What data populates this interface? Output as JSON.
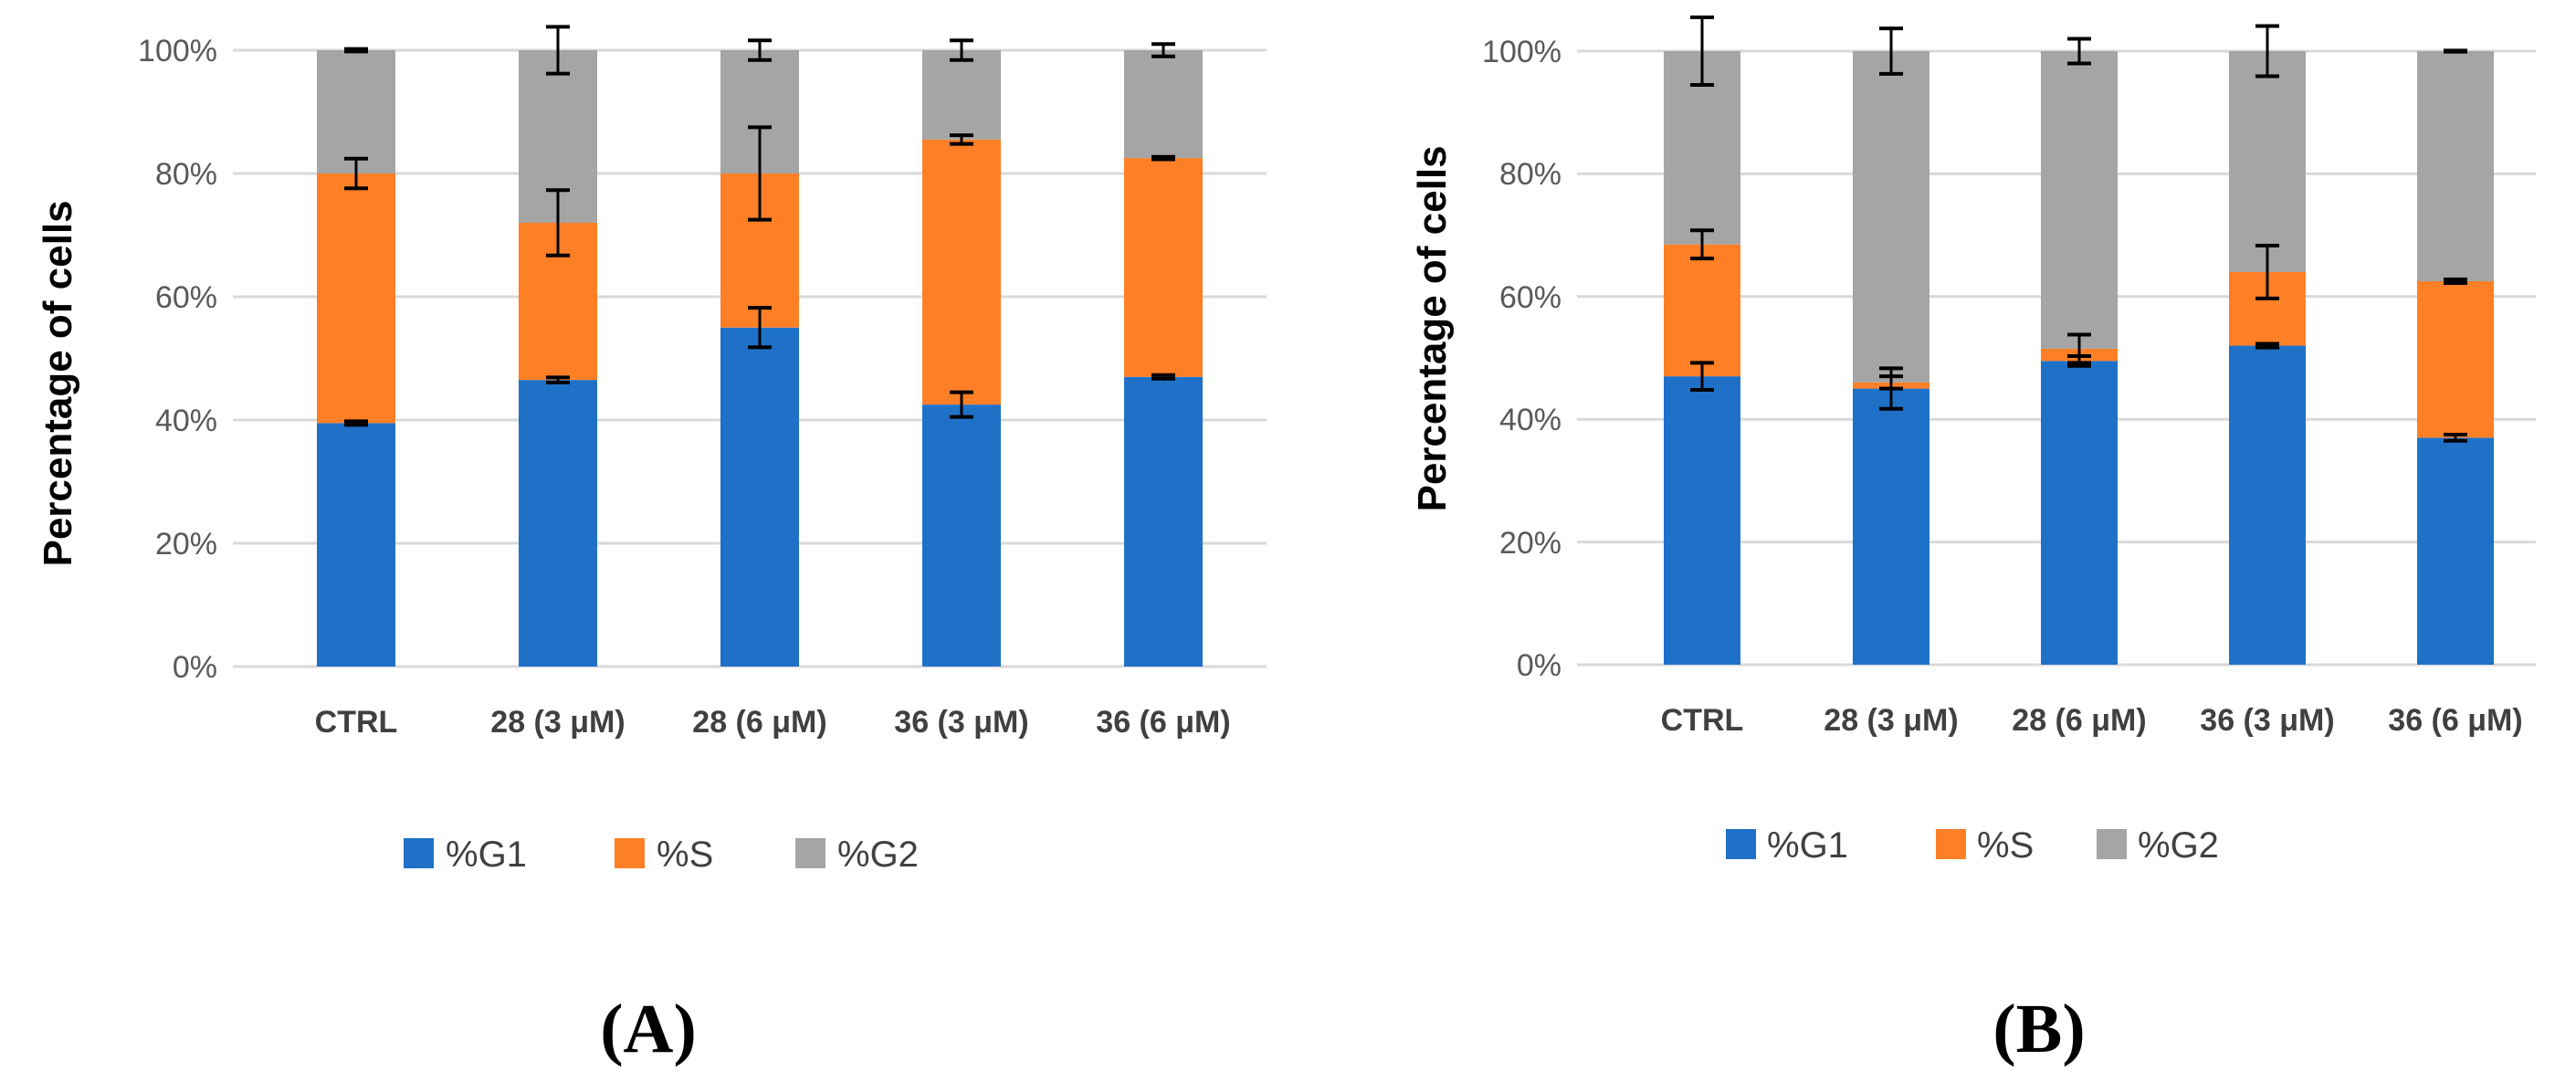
{
  "colors": {
    "g1": "#1F71C8",
    "s": "#FF7F27",
    "g2": "#A5A5A5",
    "grid": "#D9D9D9",
    "error_bar": "#000000"
  },
  "chart_data": [
    {
      "type": "bar",
      "stacked": true,
      "panel_label": "A",
      "ylabel": "Percentage of cells",
      "xlabel": "",
      "ylim": [
        0,
        100
      ],
      "yticks": [
        "0%",
        "20%",
        "40%",
        "60%",
        "80%",
        "100%"
      ],
      "grid": true,
      "legend_position": "bottom",
      "categories": [
        "CTRL",
        "28 (3 μM)",
        "28 (6 μM)",
        "36 (3 μM)",
        "36 (6 μM)"
      ],
      "series": [
        {
          "name": "%G1",
          "color_key": "g1",
          "values": [
            39.5,
            46.5,
            55,
            42.5,
            47
          ],
          "errors": [
            0.3,
            0.4,
            3.2,
            2,
            0.3
          ]
        },
        {
          "name": "%S",
          "color_key": "s",
          "values": [
            40.5,
            25.5,
            25,
            43,
            35.5
          ],
          "errors": [
            2.4,
            5.3,
            7.5,
            0.7,
            0.2
          ]
        },
        {
          "name": "%G2",
          "color_key": "g2",
          "values": [
            20,
            28,
            20,
            14.5,
            17.5
          ],
          "errors": [
            0.2,
            3.8,
            1.6,
            1.6,
            1
          ]
        }
      ]
    },
    {
      "type": "bar",
      "stacked": true,
      "panel_label": "B",
      "ylabel": "Percentage of cells",
      "xlabel": "",
      "ylim": [
        0,
        100
      ],
      "yticks": [
        "0%",
        "20%",
        "40%",
        "60%",
        "80%",
        "100%"
      ],
      "grid": true,
      "legend_position": "bottom",
      "categories": [
        "CTRL",
        "28 (3 μM)",
        "28 (6 μM)",
        "36 (3 μM)",
        "36 (6 μM)"
      ],
      "series": [
        {
          "name": "%G1",
          "color_key": "g1",
          "values": [
            47,
            45,
            49.5,
            52,
            37
          ],
          "errors": [
            2.2,
            3.3,
            0.8,
            0.3,
            0.5
          ]
        },
        {
          "name": "%S",
          "color_key": "s",
          "values": [
            21.5,
            1,
            2,
            12,
            25.5
          ],
          "errors": [
            2.3,
            1,
            2.3,
            4.3,
            0.3
          ]
        },
        {
          "name": "%G2",
          "color_key": "g2",
          "values": [
            31.5,
            54,
            48.5,
            36,
            37.5
          ],
          "errors": [
            5.5,
            3.7,
            2,
            4.1,
            0.1
          ]
        }
      ]
    }
  ]
}
